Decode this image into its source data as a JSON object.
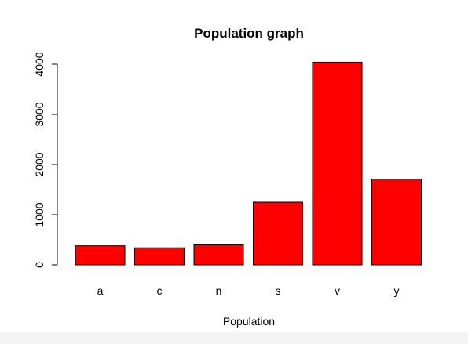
{
  "chart_data": {
    "type": "bar",
    "title": "Population graph",
    "xlabel": "Population",
    "ylabel": "",
    "categories": [
      "a",
      "c",
      "n",
      "s",
      "v",
      "y"
    ],
    "values": [
      380,
      340,
      400,
      1250,
      4040,
      1710
    ],
    "ylim": [
      0,
      4000
    ],
    "yticks": [
      0,
      1000,
      2000,
      3000,
      4000
    ],
    "grid": false,
    "bar_color": "#ff0000",
    "bar_border_color": "#000000"
  }
}
